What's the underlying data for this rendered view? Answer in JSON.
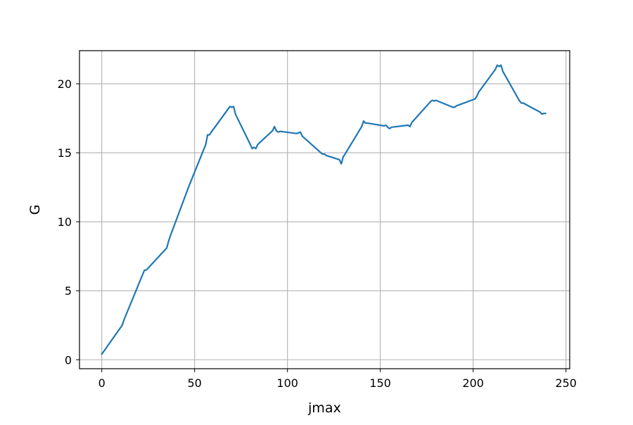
{
  "chart_data": {
    "type": "line",
    "title": "",
    "xlabel": "jmax",
    "ylabel": "G",
    "xlim": [
      -12,
      252
    ],
    "ylim": [
      -0.65,
      22.4
    ],
    "xticks": [
      0,
      50,
      100,
      150,
      200,
      250
    ],
    "yticks": [
      0,
      5,
      10,
      15,
      20
    ],
    "grid": true,
    "series_color": "#1f77b4",
    "series": [
      {
        "x": [
          0,
          11,
          12,
          23,
          24,
          35,
          36,
          37,
          47,
          56,
          57,
          58,
          59,
          69,
          70,
          71,
          72,
          80,
          81,
          82,
          83,
          84,
          92,
          93,
          94,
          95,
          96,
          105,
          106,
          107,
          108,
          118,
          119,
          120,
          121,
          128,
          129,
          130,
          131,
          140,
          141,
          142,
          143,
          152,
          153,
          154,
          155,
          156,
          165,
          166,
          167,
          177,
          178,
          179,
          180,
          189,
          190,
          191,
          200,
          201,
          202,
          203,
          212,
          213,
          214,
          215,
          216,
          225,
          226,
          227,
          236,
          237,
          238,
          239
        ],
        "y": [
          0.4,
          2.5,
          2.9,
          6.5,
          6.5,
          8.1,
          8.6,
          9.0,
          12.6,
          15.6,
          16.3,
          16.3,
          16.5,
          18.35,
          18.3,
          18.35,
          17.8,
          15.6,
          15.3,
          15.4,
          15.3,
          15.6,
          16.6,
          16.9,
          16.6,
          16.5,
          16.55,
          16.4,
          16.45,
          16.5,
          16.2,
          15.0,
          14.9,
          14.9,
          14.8,
          14.5,
          14.2,
          14.7,
          14.9,
          16.9,
          17.3,
          17.15,
          17.15,
          16.95,
          17.0,
          16.85,
          16.75,
          16.85,
          17.0,
          16.9,
          17.2,
          18.7,
          18.8,
          18.75,
          18.8,
          18.3,
          18.3,
          18.4,
          18.85,
          18.9,
          19.1,
          19.4,
          21.05,
          21.35,
          21.25,
          21.35,
          20.9,
          18.75,
          18.6,
          18.6,
          17.95,
          17.8,
          17.85,
          17.85
        ]
      }
    ]
  }
}
